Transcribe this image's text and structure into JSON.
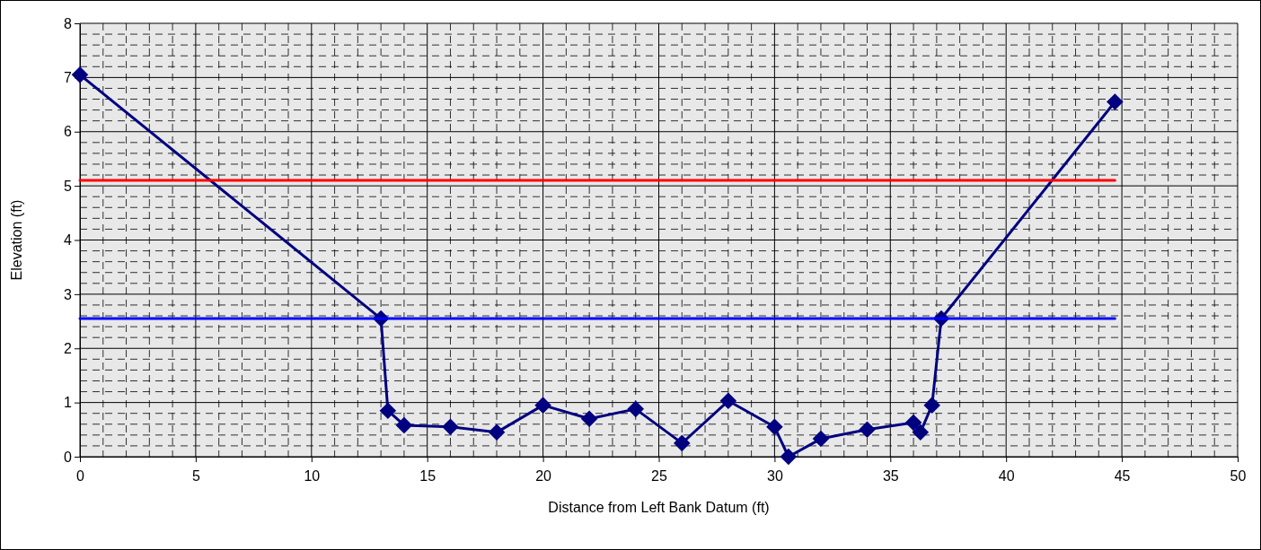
{
  "chart_data": {
    "type": "line",
    "xlabel": "Distance from Left Bank Datum (ft)",
    "ylabel": "Elevation (ft)",
    "xlim": [
      0,
      50
    ],
    "xticks": [
      0,
      5,
      10,
      15,
      20,
      25,
      30,
      35,
      40,
      45,
      50
    ],
    "ylim": [
      0,
      8
    ],
    "yticks": [
      0,
      1,
      2,
      3,
      4,
      5,
      6,
      7,
      8
    ],
    "grid": true,
    "marker": "diamond",
    "series": [
      {
        "color": "#000080",
        "x": [
          0,
          13,
          13.3,
          14,
          16,
          18,
          20,
          22,
          24,
          26,
          28,
          30,
          30.6,
          32,
          34,
          36,
          36.3,
          36.8,
          37.2,
          44.7
        ],
        "values": [
          7.05,
          2.55,
          0.85,
          0.58,
          0.55,
          0.45,
          0.95,
          0.7,
          0.88,
          0.25,
          1.03,
          0.55,
          0,
          0.33,
          0.5,
          0.63,
          0.45,
          0.95,
          2.55,
          6.55
        ]
      },
      {
        "color": "#ff0000",
        "marker": "none",
        "x": [
          0,
          44.7
        ],
        "values": [
          5.1,
          5.1
        ]
      },
      {
        "color": "#0000ff",
        "marker": "none",
        "x": [
          0,
          44.7
        ],
        "values": [
          2.55,
          2.55
        ]
      }
    ]
  }
}
